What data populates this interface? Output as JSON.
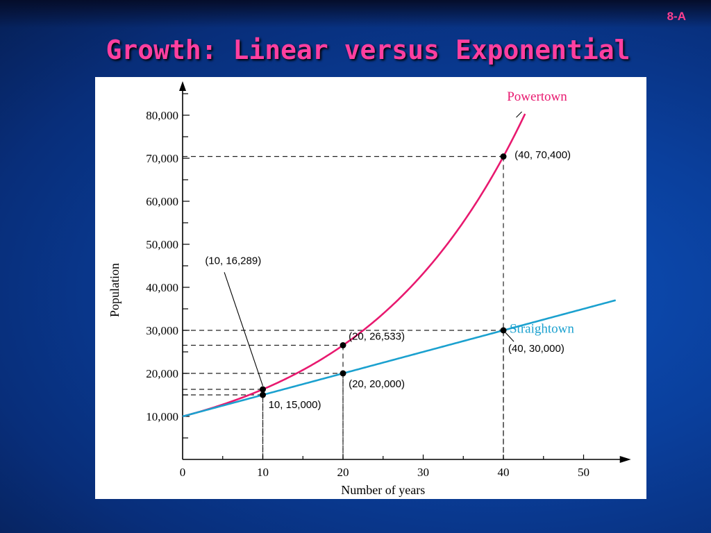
{
  "slide": {
    "number": "8-A",
    "title": "Growth: Linear versus Exponential"
  },
  "colors": {
    "powertown": "#e8196f",
    "straightown": "#1ba1cf",
    "title": "#ff3fa0"
  },
  "chart_data": {
    "type": "line",
    "xlabel": "Number of years",
    "ylabel": "Population",
    "xlim": [
      0,
      54
    ],
    "ylim": [
      0,
      90000
    ],
    "x_ticks": [
      0,
      10,
      20,
      30,
      40,
      50
    ],
    "x_tick_labels": [
      "0",
      "10",
      "20",
      "30",
      "40",
      "50"
    ],
    "y_ticks": [
      10000,
      20000,
      30000,
      40000,
      50000,
      60000,
      70000,
      80000
    ],
    "y_tick_labels": [
      "10,000",
      "20,000",
      "30,000",
      "40,000",
      "50,000",
      "60,000",
      "70,000",
      "80,000"
    ],
    "grid": false,
    "series": [
      {
        "name": "Powertown",
        "kind": "exponential",
        "initial": 10000,
        "annual_rate": 0.05,
        "x_range": [
          0,
          42.7
        ]
      },
      {
        "name": "Straightown",
        "kind": "linear",
        "initial": 10000,
        "annual_increase": 500,
        "x_range": [
          0,
          54
        ]
      }
    ],
    "points": [
      {
        "x": 10,
        "y": 16289,
        "label": "(10, 16,289)"
      },
      {
        "x": 10,
        "y": 15000,
        "label": "10, 15,000)"
      },
      {
        "x": 20,
        "y": 26533,
        "label": "(20, 26,533)"
      },
      {
        "x": 20,
        "y": 20000,
        "label": "(20, 20,000)"
      },
      {
        "x": 40,
        "y": 70400,
        "label": "(40, 70,400)"
      },
      {
        "x": 40,
        "y": 30000,
        "label": "(40, 30,000)"
      }
    ]
  }
}
